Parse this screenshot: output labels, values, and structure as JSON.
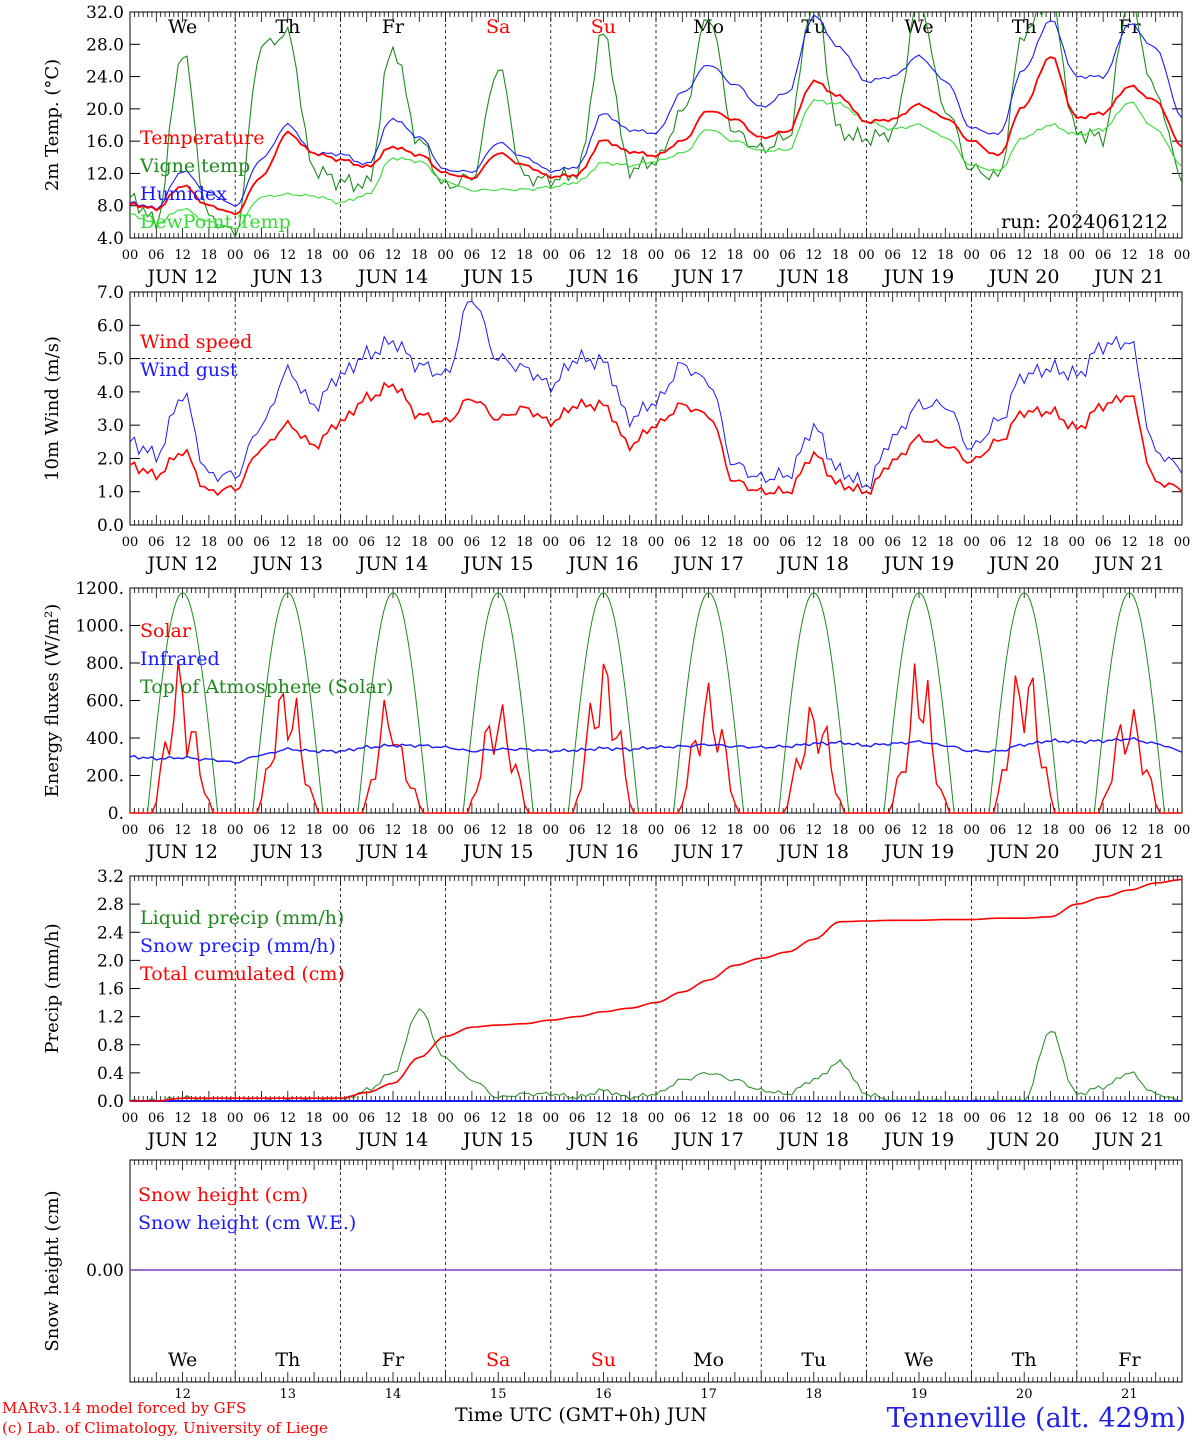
{
  "footer": {
    "credit_line1": "MARv3.14 model forced by GFS",
    "credit_line2": "(c) Lab. of Climatology, University of Liege",
    "x_title": "Time UTC (GMT+0h)",
    "month": "JUN",
    "station": "Tenneville (alt. 429m)"
  },
  "run_label": "run: 2024061212",
  "days": [
    {
      "abbr": "We",
      "date": "JUN 12",
      "num": "12",
      "weekend": false
    },
    {
      "abbr": "Th",
      "date": "JUN 13",
      "num": "13",
      "weekend": false
    },
    {
      "abbr": "Fr",
      "date": "JUN 14",
      "num": "14",
      "weekend": false
    },
    {
      "abbr": "Sa",
      "date": "JUN 15",
      "num": "15",
      "weekend": true
    },
    {
      "abbr": "Su",
      "date": "JUN 16",
      "num": "16",
      "weekend": true
    },
    {
      "abbr": "Mo",
      "date": "JUN 17",
      "num": "17",
      "weekend": false
    },
    {
      "abbr": "Tu",
      "date": "JUN 18",
      "num": "18",
      "weekend": false
    },
    {
      "abbr": "We",
      "date": "JUN 19",
      "num": "19",
      "weekend": false
    },
    {
      "abbr": "Th",
      "date": "JUN 20",
      "num": "20",
      "weekend": false
    },
    {
      "abbr": "Fr",
      "date": "JUN 21",
      "num": "21",
      "weekend": false
    }
  ],
  "hour_ticks": [
    "00",
    "06",
    "12",
    "18"
  ],
  "colors": {
    "red": "#ff0000",
    "blue": "#1a1aff",
    "green": "#1e8a1e",
    "light_green": "#33dd33",
    "purple": "#7f3fbf"
  },
  "chart_data": [
    {
      "type": "line",
      "id": "temperature",
      "ylabel": "2m Temp. (°C)",
      "ylim": [
        4,
        32
      ],
      "yticks": [
        "4.0",
        "8.0",
        "12.0",
        "16.0",
        "20.0",
        "24.0",
        "28.0",
        "32.0"
      ],
      "x_hours_step": 6,
      "series": [
        {
          "name": "Temperature",
          "color": "#ff0000",
          "values": [
            8.2,
            7.6,
            10.5,
            8.0,
            7.0,
            11.6,
            17.0,
            14.5,
            13.7,
            12.8,
            15.3,
            14.3,
            12.0,
            11.4,
            14.5,
            13.0,
            11.6,
            11.8,
            16.1,
            14.7,
            14.2,
            16.0,
            19.8,
            18.7,
            16.4,
            17.2,
            23.4,
            21.5,
            18.4,
            18.7,
            20.5,
            18.9,
            16.0,
            14.2,
            20.4,
            26.5,
            18.9,
            19.5,
            22.8,
            21.0,
            15.4
          ]
        },
        {
          "name": "Vigne temp",
          "color": "#1e8a1e",
          "values": [
            9.0,
            6.0,
            27.0,
            6.5,
            4.6,
            27.8,
            29.2,
            12.5,
            11.0,
            10.5,
            27.5,
            16.0,
            10.4,
            11.5,
            25.0,
            11.5,
            11.2,
            12.0,
            29.3,
            12.5,
            13.5,
            19.5,
            31.5,
            17.0,
            15.0,
            16.5,
            33.5,
            17.0,
            16.3,
            17.0,
            33.5,
            20.0,
            12.5,
            11.5,
            29.5,
            33.5,
            17.0,
            16.5,
            33.5,
            22.0,
            11.5
          ]
        },
        {
          "name": "Humidex",
          "color": "#1a1aff",
          "values": [
            8.4,
            7.7,
            12.3,
            9.6,
            8.0,
            13.8,
            18.0,
            14.5,
            14.4,
            13.1,
            18.8,
            16.5,
            12.4,
            12.2,
            15.8,
            14.0,
            12.3,
            12.8,
            19.4,
            17.4,
            17.0,
            22.0,
            25.5,
            23.0,
            20.2,
            22.0,
            31.5,
            27.5,
            23.4,
            24.0,
            26.5,
            23.5,
            17.6,
            16.8,
            25.0,
            31.0,
            24.0,
            24.0,
            30.5,
            27.5,
            19.0
          ]
        },
        {
          "name": "DewPoint Temp",
          "color": "#33dd33",
          "values": [
            6.9,
            5.8,
            7.6,
            6.0,
            5.2,
            9.1,
            9.4,
            9.2,
            8.4,
            9.3,
            13.9,
            13.5,
            11.0,
            9.9,
            10.0,
            10.0,
            10.3,
            10.9,
            13.3,
            13.0,
            13.5,
            14.5,
            17.5,
            16.0,
            14.8,
            14.9,
            21.0,
            20.6,
            18.4,
            17.5,
            18.0,
            16.5,
            13.0,
            12.3,
            16.5,
            18.0,
            16.8,
            17.5,
            20.8,
            17.5,
            13.0
          ]
        }
      ]
    },
    {
      "type": "line",
      "id": "wind",
      "ylabel": "10m Wind (m/s)",
      "ylim": [
        0,
        7
      ],
      "yticks": [
        "0.0",
        "1.0",
        "2.0",
        "3.0",
        "4.0",
        "5.0",
        "6.0",
        "7.0"
      ],
      "reference_line": 5.0,
      "x_hours_step": 6,
      "series": [
        {
          "name": "Wind speed",
          "color": "#ff0000",
          "values": [
            1.8,
            1.5,
            2.2,
            1.0,
            1.1,
            2.3,
            3.0,
            2.4,
            3.1,
            3.8,
            4.2,
            3.3,
            3.1,
            3.8,
            3.2,
            3.5,
            3.1,
            3.6,
            3.6,
            2.4,
            3.0,
            3.6,
            3.3,
            1.3,
            1.0,
            1.0,
            2.1,
            1.2,
            1.0,
            1.9,
            2.6,
            2.4,
            1.9,
            2.5,
            3.4,
            3.4,
            2.9,
            3.6,
            3.9,
            1.3,
            1.1
          ]
        },
        {
          "name": "Wind gust",
          "color": "#1a1aff",
          "values": [
            2.5,
            2.1,
            3.9,
            1.5,
            1.5,
            3.0,
            4.6,
            3.6,
            4.5,
            5.1,
            5.5,
            4.8,
            4.5,
            6.8,
            5.0,
            4.7,
            4.2,
            5.0,
            4.9,
            3.2,
            3.7,
            4.8,
            4.3,
            1.8,
            1.4,
            1.5,
            2.9,
            1.6,
            1.2,
            2.6,
            3.6,
            3.6,
            2.3,
            3.1,
            4.5,
            4.7,
            4.5,
            5.4,
            5.5,
            2.2,
            1.7
          ]
        }
      ]
    },
    {
      "type": "line",
      "id": "energy",
      "ylabel": "Energy fluxes (W/m²)",
      "ylim": [
        0,
        1200
      ],
      "yticks": [
        "0.",
        "200.",
        "400.",
        "600.",
        "800.",
        "1000.",
        "1200."
      ],
      "x_hours_step": 3,
      "toa_peak": 1175,
      "series": [
        {
          "name": "Solar",
          "color": "#ff0000",
          "peaks": [
            [
              840,
              620
            ],
            [
              760,
              720,
              590
            ],
            [
              700,
              430
            ],
            [
              630,
              600
            ],
            [
              850
            ],
            [
              700
            ],
            [
              600,
              650
            ],
            [
              600,
              860,
              580
            ],
            [
              850
            ],
            [
              600,
              580
            ]
          ]
        },
        {
          "name": "Infrared",
          "color": "#1a1aff",
          "values": [
            300,
            290,
            295,
            285,
            270,
            310,
            340,
            330,
            330,
            350,
            360,
            360,
            350,
            330,
            340,
            340,
            330,
            335,
            345,
            340,
            350,
            355,
            365,
            355,
            350,
            355,
            370,
            375,
            360,
            370,
            380,
            360,
            330,
            330,
            365,
            385,
            380,
            385,
            395,
            370,
            330
          ]
        },
        {
          "name": "Top of Atmosphere (Solar)",
          "color": "#1e8a1e",
          "peak": 1175
        }
      ]
    },
    {
      "type": "line",
      "id": "precip",
      "ylabel": "Precip (mm/h)",
      "ylim": [
        0,
        3.2
      ],
      "yticks": [
        "0.0",
        "0.4",
        "0.8",
        "1.2",
        "1.6",
        "2.0",
        "2.4",
        "2.8",
        "3.2"
      ],
      "x_hours_step": 6,
      "series": [
        {
          "name": "Liquid precip (mm/h)",
          "color": "#1e8a1e",
          "values": [
            0,
            0,
            0.05,
            0,
            0,
            0,
            0,
            0,
            0,
            0.15,
            0.4,
            1.3,
            0.6,
            0.3,
            0.05,
            0.1,
            0.1,
            0.05,
            0.15,
            0.05,
            0.1,
            0.3,
            0.4,
            0.3,
            0.15,
            0.1,
            0.3,
            0.55,
            0.1,
            0,
            0,
            0,
            0,
            0,
            0,
            1.0,
            0.1,
            0.2,
            0.4,
            0.1,
            0
          ]
        },
        {
          "name": "Snow precip (mm/h)",
          "color": "#1a1aff",
          "values": [
            0,
            0,
            0,
            0,
            0,
            0,
            0,
            0,
            0,
            0,
            0,
            0,
            0,
            0,
            0,
            0,
            0,
            0,
            0,
            0,
            0,
            0,
            0,
            0,
            0,
            0,
            0,
            0,
            0,
            0,
            0,
            0,
            0,
            0,
            0,
            0,
            0,
            0,
            0,
            0,
            0
          ]
        },
        {
          "name": "Total cumulated (cm)",
          "color": "#ff0000",
          "values": [
            0,
            0,
            0.04,
            0.04,
            0.04,
            0.04,
            0.04,
            0.04,
            0.04,
            0.12,
            0.25,
            0.62,
            0.92,
            1.05,
            1.08,
            1.1,
            1.15,
            1.2,
            1.27,
            1.32,
            1.4,
            1.55,
            1.72,
            1.93,
            2.03,
            2.12,
            2.3,
            2.55,
            2.56,
            2.57,
            2.57,
            2.58,
            2.58,
            2.6,
            2.6,
            2.62,
            2.8,
            2.9,
            3.0,
            3.1,
            3.15
          ]
        }
      ]
    },
    {
      "type": "line",
      "id": "snow",
      "ylabel": "Snow height (cm)",
      "yticks": [
        "0.00"
      ],
      "series": [
        {
          "name": "Snow height (cm)",
          "color": "#ff0000",
          "values": [
            0,
            0,
            0,
            0,
            0,
            0,
            0,
            0,
            0,
            0,
            0,
            0,
            0,
            0,
            0,
            0,
            0,
            0,
            0,
            0,
            0,
            0,
            0,
            0,
            0,
            0,
            0,
            0,
            0,
            0,
            0,
            0,
            0,
            0,
            0,
            0,
            0,
            0,
            0,
            0,
            0
          ]
        },
        {
          "name": "Snow height (cm W.E.)",
          "color": "#1a1aff",
          "values": [
            0,
            0,
            0,
            0,
            0,
            0,
            0,
            0,
            0,
            0,
            0,
            0,
            0,
            0,
            0,
            0,
            0,
            0,
            0,
            0,
            0,
            0,
            0,
            0,
            0,
            0,
            0,
            0,
            0,
            0,
            0,
            0,
            0,
            0,
            0,
            0,
            0,
            0,
            0,
            0,
            0
          ]
        }
      ]
    }
  ]
}
